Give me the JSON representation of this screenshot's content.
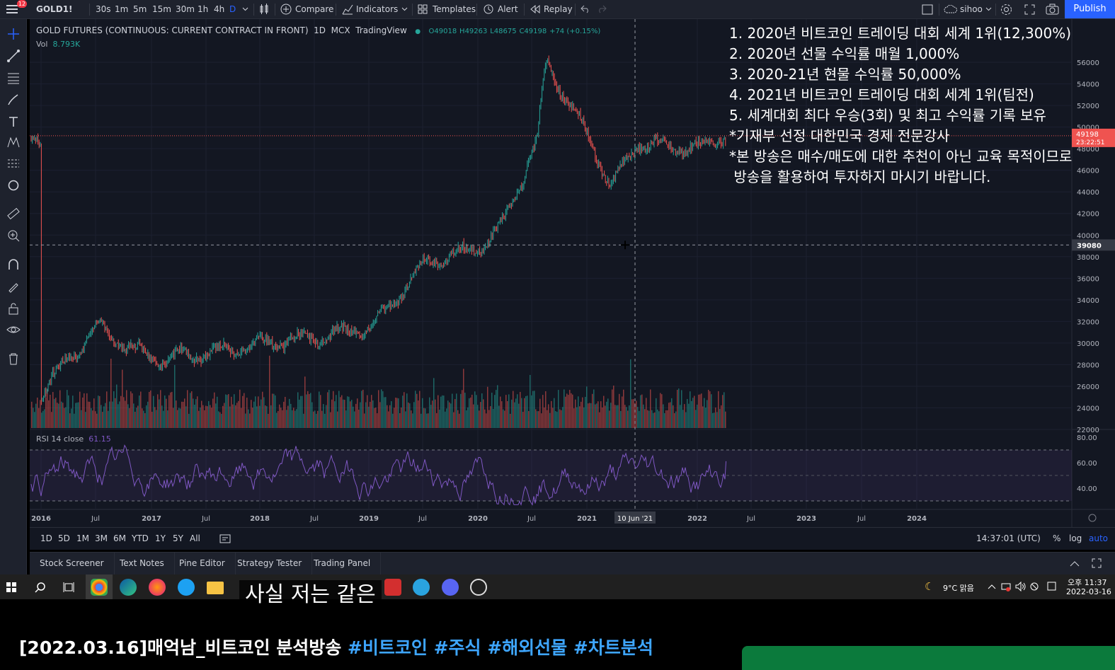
{
  "toolbar": {
    "notification_count": "12",
    "symbol": "GOLD1!",
    "intervals": [
      "30s",
      "1m",
      "5m",
      "15m",
      "30m",
      "1h",
      "4h",
      "D"
    ],
    "compare": "Compare",
    "indicators": "Indicators",
    "templates": "Templates",
    "alert": "Alert",
    "replay": "Replay",
    "user": "sihoo",
    "publish": "Publish"
  },
  "legend": {
    "title": "GOLD FUTURES (CONTINUOUS: CURRENT CONTRACT IN FRONT)",
    "interval": "1D",
    "exchange": "MCX",
    "source": "TradingView",
    "open": "O49018",
    "high": "H49263",
    "low": "L48675",
    "close": "C49198",
    "change": "+74 (+0.15%)",
    "vol_label": "Vol",
    "vol_value": "8.793K",
    "rsi_label": "RSI 14 close",
    "rsi_value": "61.15"
  },
  "overlay": {
    "lines": [
      "1. 2020년 비트코인 트레이딩 대회 세계 1위(12,300%)",
      "2. 2020년 선물 수익률 매월 1,000%",
      "3. 2020-21년 현물 수익률 50,000%",
      "4. 2021년 비트코인 트레이딩 대회 세계 1위(팀전)",
      "5. 세계대회 최다 우승(3회) 및 최고 수익률 기록 보유",
      "*기재부 선정 대한민국 경제 전문강사",
      "*본 방송은 매수/매도에 대한 추천이 아닌 교육 목적이므로",
      " 방송을 활용하여 투자하지 마시기 바랍니다."
    ]
  },
  "chart_data": {
    "type": "line",
    "title": "GOLD FUTURES (CONTINUOUS: CURRENT CONTRACT IN FRONT)",
    "price_axis": {
      "ticks": [
        "56000",
        "54000",
        "52000",
        "50000",
        "48000",
        "46000",
        "44000",
        "42000",
        "40000",
        "38000",
        "36000",
        "34000",
        "32000",
        "30000",
        "28000",
        "26000",
        "24000",
        "22000"
      ],
      "min": 22000,
      "max": 60000,
      "last_price_label": "49198",
      "last_price_timer": "23:22:51",
      "crosshair_label": "39080"
    },
    "time_axis": {
      "ticks": [
        "2016",
        "Jul",
        "2017",
        "Jul",
        "2018",
        "Jul",
        "2019",
        "Jul",
        "2020",
        "Jul",
        "2021",
        "10 Jun '21",
        "2022",
        "Jul",
        "2023",
        "Jul",
        "2024"
      ]
    },
    "series": [
      {
        "x": [
          "2016-01",
          "2016-07",
          "2017-01",
          "2017-07",
          "2018-01",
          "2018-07",
          "2019-01",
          "2019-07",
          "2020-01",
          "2020-03",
          "2020-07",
          "2020-08",
          "2021-01",
          "2021-03",
          "2021-06",
          "2022-01",
          "2022-03"
        ],
        "values": [
          25500,
          31500,
          28500,
          29000,
          30000,
          30500,
          31500,
          37500,
          39000,
          40500,
          48500,
          56000,
          48500,
          44500,
          48500,
          48000,
          49198
        ]
      }
    ],
    "rsi": {
      "ticks": [
        "80.00",
        "60.00",
        "40.00"
      ],
      "upper": 70,
      "lower": 30,
      "last": 61.15
    }
  },
  "range_bar": {
    "ranges": [
      "1D",
      "5D",
      "1M",
      "3M",
      "6M",
      "YTD",
      "1Y",
      "5Y",
      "All"
    ],
    "time": "14:37:01 (UTC)",
    "percent": "%",
    "log": "log",
    "auto": "auto"
  },
  "bottom_tabs": [
    "Stock Screener",
    "Text Notes",
    "Pine Editor",
    "Strategy Tester",
    "Trading Panel"
  ],
  "taskbar": {
    "weather": "9°C 맑음",
    "time": "오후 11:37",
    "date": "2022-03-16"
  },
  "subtitle": "사실 저는 같은",
  "video_title": {
    "main": "[2022.03.16]매억남_비트코인 분석방송 ",
    "tags": "#비트코인 #주식 #해외선물 #차트분석"
  }
}
